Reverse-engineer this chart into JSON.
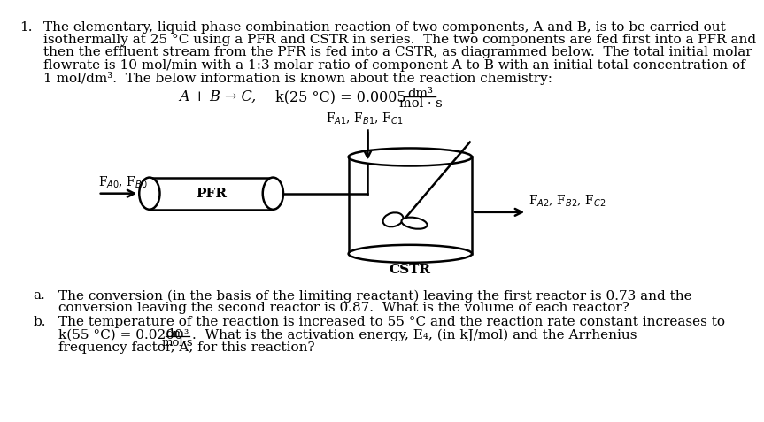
{
  "background_color": "#ffffff",
  "fig_width": 9.27,
  "fig_height": 5.94,
  "number_label": "1.",
  "main_lines": [
    "The elementary, liquid-phase combination reaction of two components, A and B, is to be carried out",
    "isothermally at 25 °C using a PFR and CSTR in series.  The two components are fed first into a PFR and",
    "then the effluent stream from the PFR is fed into a CSTR, as diagrammed below.  The total initial molar",
    "flowrate is 10 mol/min with a 1:3 molar ratio of component A to B with an initial total concentration of",
    "1 mol/dm³.  The below information is known about the reaction chemistry:"
  ],
  "reaction_text": "A + B → C,",
  "k25_text": "k(25 °C) = 0.0005",
  "k25_units_num": "dm³",
  "k25_units_den": "mol · s",
  "part_a_label": "a.",
  "part_a_line1": "The conversion (in the basis of the limiting reactant) leaving the first reactor is 0.73 and the",
  "part_a_line2": "conversion leaving the second reactor is 0.87.  What is the volume of each reactor?",
  "part_b_label": "b.",
  "part_b_line1": "The temperature of the reaction is increased to 55 °C and the reaction rate constant increases to",
  "part_b_k": "k(55 °C) = 0.0200",
  "part_b_units_num": "dm³",
  "part_b_units_den": "mol·s",
  "part_b_line2": ".  What is the activation energy, E₄, (in kJ/mol) and the Arrhenius",
  "part_b_line3": "frequency factor, A, for this reaction?",
  "label_PFR": "PFR",
  "label_CSTR": "CSTR",
  "label_FA0_FB0": "F$_{A0}$, F$_{B0}$",
  "label_FA1_FB1_FC1": "F$_{A1}$, F$_{B1}$, F$_{C1}$",
  "label_FA2_FB2_FC2": "F$_{A2}$, F$_{B2}$, F$_{C2}$",
  "fs_main": 11.0,
  "fs_diagram": 10.0,
  "lw_diagram": 1.8
}
